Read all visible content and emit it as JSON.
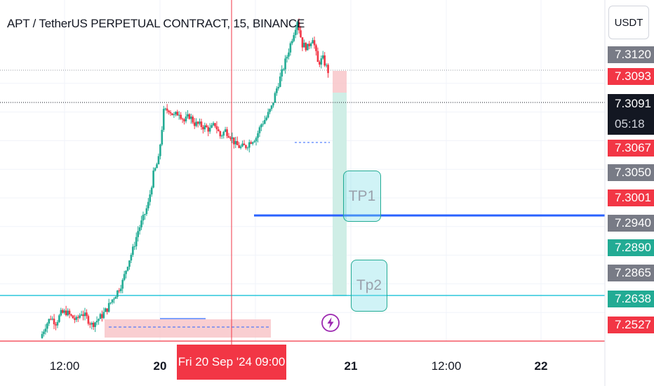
{
  "header": {
    "title": "APT / TetherUS PERPETUAL CONTRACT, 15, BINANCE",
    "currency": "USDT"
  },
  "price_axis": {
    "labels": [
      {
        "value": "7.3120",
        "kind": "scale"
      },
      {
        "value": "7.3093",
        "kind": "red"
      },
      {
        "value": "7.3091",
        "kind": "current"
      },
      {
        "value": "05:18",
        "kind": "countdown"
      },
      {
        "value": "7.3067",
        "kind": "red"
      },
      {
        "value": "7.3050",
        "kind": "scale"
      },
      {
        "value": "7.3001",
        "kind": "red"
      },
      {
        "value": "7.2940",
        "kind": "scale"
      },
      {
        "value": "7.2890",
        "kind": "green"
      },
      {
        "value": "7.2865",
        "kind": "scale"
      },
      {
        "value": "7.2638",
        "kind": "green"
      },
      {
        "value": "7.2527",
        "kind": "red"
      }
    ]
  },
  "time_axis": {
    "labels": [
      "12:00",
      "20",
      "21",
      "12:00",
      "22"
    ],
    "crosshair_label": "Fri 20 Sep '24  09:00"
  },
  "annotations": {
    "tp1": "TP1",
    "tp2": "Tp2"
  },
  "colors": {
    "up": "#22ab94",
    "down": "#f23645",
    "blue_line": "#2962ff",
    "cyan_line": "#00bcd4",
    "scale_label": "#787b86",
    "current_label": "#131722",
    "flash_icon": "#9c27b0"
  },
  "chart_data": {
    "type": "candlestick",
    "symbol": "APT / TetherUS PERPETUAL CONTRACT",
    "interval": "15",
    "exchange": "BINANCE",
    "price_range": [
      7.245,
      7.313
    ],
    "close_path": [
      7.2457,
      7.2487,
      7.2506,
      7.2494,
      7.2515,
      7.2519,
      7.2508,
      7.2499,
      7.2518,
      7.2505,
      7.2489,
      7.2499,
      7.2511,
      7.2527,
      7.2549,
      7.2568,
      7.2591,
      7.2634,
      7.2667,
      7.2712,
      7.2741,
      7.2776,
      7.2846,
      7.2881,
      7.2994,
      7.3001,
      7.2984,
      7.2994,
      7.2972,
      7.2985,
      7.2967,
      7.2963,
      7.2958,
      7.2952,
      7.2965,
      7.2937,
      7.295,
      7.2938,
      7.2916,
      7.291,
      7.2913,
      7.2926,
      7.2934,
      7.2965,
      7.2981,
      7.3005,
      7.305,
      7.3087,
      7.3127,
      7.317,
      7.3212,
      7.3154,
      7.3147,
      7.3172,
      7.311,
      7.312,
      7.3091
    ],
    "current_price": 7.3091,
    "levels": [
      {
        "label": "TP1",
        "price": 7.2965
      },
      {
        "label": "Tp2",
        "price": 7.2638
      }
    ]
  }
}
